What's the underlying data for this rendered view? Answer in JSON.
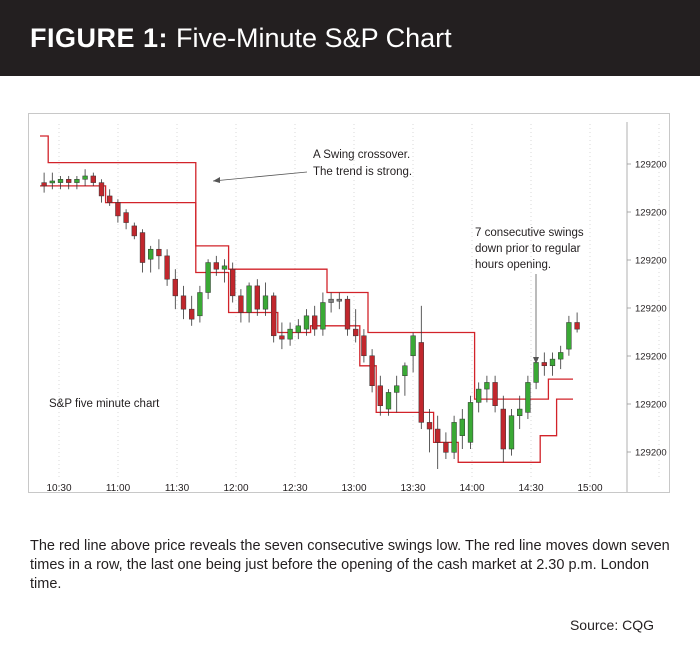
{
  "header": {
    "figure_label": "FIGURE 1:",
    "title": "Five-Minute S&P Chart"
  },
  "caption": "The red line above price reveals the seven consecutive swings low. The red line moves down seven times in a row, the last one being just before the opening of the cash market at 2.30 p.m. London time.",
  "source": "Source: CQG",
  "colors": {
    "header_bg": "#231f20",
    "swing_line": "#d2232a",
    "up_candle": "#3aa935",
    "down_candle": "#c1272d",
    "neutral_candle": "#808080"
  },
  "chart_data": {
    "type": "candlestick",
    "title": "",
    "xlabel": "",
    "ylabel": "",
    "x_ticks": [
      "10:30",
      "11:00",
      "11:30",
      "12:00",
      "12:30",
      "13:00",
      "13:30",
      "14:00",
      "14:30",
      "15:00"
    ],
    "y_ticks": [
      "129200",
      "129200",
      "129200",
      "129200",
      "129200",
      "129200",
      "129200"
    ],
    "y_axis_position": "right",
    "grid": "vertical dotted",
    "ylim": [
      0,
      100
    ],
    "labels": {
      "series": "S&P five minute chart",
      "crossover_line1": "A Swing crossover.",
      "crossover_line2": "The trend is strong.",
      "swings_line1": "7 consecutive swings",
      "swings_line2": "down prior to regular",
      "swings_line3": "hours opening."
    },
    "candles": [
      {
        "o": 86,
        "h": 89,
        "l": 83,
        "c": 85,
        "dir": "down"
      },
      {
        "o": 86,
        "h": 89,
        "l": 84,
        "c": 86.5,
        "dir": "up"
      },
      {
        "o": 86,
        "h": 88,
        "l": 84,
        "c": 87,
        "dir": "up"
      },
      {
        "o": 87,
        "h": 88,
        "l": 84,
        "c": 86,
        "dir": "down"
      },
      {
        "o": 86,
        "h": 88,
        "l": 84,
        "c": 87,
        "dir": "up"
      },
      {
        "o": 87,
        "h": 90,
        "l": 85,
        "c": 88,
        "dir": "up"
      },
      {
        "o": 88,
        "h": 89,
        "l": 85,
        "c": 86,
        "dir": "down"
      },
      {
        "o": 86,
        "h": 87,
        "l": 80,
        "c": 82,
        "dir": "down"
      },
      {
        "o": 82,
        "h": 84,
        "l": 79,
        "c": 80,
        "dir": "down"
      },
      {
        "o": 80,
        "h": 81,
        "l": 74,
        "c": 76,
        "dir": "down"
      },
      {
        "o": 77,
        "h": 78,
        "l": 72,
        "c": 74,
        "dir": "down"
      },
      {
        "o": 73,
        "h": 74,
        "l": 69,
        "c": 70,
        "dir": "down"
      },
      {
        "o": 71,
        "h": 72,
        "l": 59,
        "c": 62,
        "dir": "down"
      },
      {
        "o": 63,
        "h": 67,
        "l": 59,
        "c": 66,
        "dir": "up"
      },
      {
        "o": 66,
        "h": 69,
        "l": 60,
        "c": 64,
        "dir": "down"
      },
      {
        "o": 64,
        "h": 66,
        "l": 55,
        "c": 57,
        "dir": "down"
      },
      {
        "o": 57,
        "h": 60,
        "l": 48,
        "c": 52,
        "dir": "down"
      },
      {
        "o": 52,
        "h": 55,
        "l": 45,
        "c": 48,
        "dir": "down"
      },
      {
        "o": 48,
        "h": 52,
        "l": 43,
        "c": 45,
        "dir": "down"
      },
      {
        "o": 46,
        "h": 55,
        "l": 44,
        "c": 53,
        "dir": "up"
      },
      {
        "o": 53,
        "h": 63,
        "l": 51,
        "c": 62,
        "dir": "up"
      },
      {
        "o": 62,
        "h": 64,
        "l": 58,
        "c": 60,
        "dir": "down"
      },
      {
        "o": 60,
        "h": 63,
        "l": 56,
        "c": 61,
        "dir": "up"
      },
      {
        "o": 60,
        "h": 62,
        "l": 50,
        "c": 52,
        "dir": "down"
      },
      {
        "o": 52,
        "h": 54,
        "l": 44,
        "c": 47,
        "dir": "down"
      },
      {
        "o": 47,
        "h": 56,
        "l": 44,
        "c": 55,
        "dir": "up"
      },
      {
        "o": 55,
        "h": 57,
        "l": 46,
        "c": 48,
        "dir": "down"
      },
      {
        "o": 48,
        "h": 56,
        "l": 46,
        "c": 52,
        "dir": "up"
      },
      {
        "o": 52,
        "h": 53,
        "l": 38,
        "c": 40,
        "dir": "down"
      },
      {
        "o": 40,
        "h": 44,
        "l": 36,
        "c": 39,
        "dir": "down"
      },
      {
        "o": 39,
        "h": 44,
        "l": 37,
        "c": 42,
        "dir": "up"
      },
      {
        "o": 41,
        "h": 45,
        "l": 39,
        "c": 43,
        "dir": "up"
      },
      {
        "o": 42,
        "h": 48,
        "l": 40,
        "c": 46,
        "dir": "up"
      },
      {
        "o": 46,
        "h": 49,
        "l": 40,
        "c": 42,
        "dir": "down"
      },
      {
        "o": 42,
        "h": 53,
        "l": 40,
        "c": 50,
        "dir": "up"
      },
      {
        "o": 50,
        "h": 53,
        "l": 47,
        "c": 51,
        "dir": "neutral"
      },
      {
        "o": 51,
        "h": 53,
        "l": 48,
        "c": 51,
        "dir": "neutral"
      },
      {
        "o": 51,
        "h": 52,
        "l": 40,
        "c": 42,
        "dir": "down"
      },
      {
        "o": 42,
        "h": 48,
        "l": 38,
        "c": 40,
        "dir": "down"
      },
      {
        "o": 40,
        "h": 42,
        "l": 32,
        "c": 34,
        "dir": "down"
      },
      {
        "o": 34,
        "h": 36,
        "l": 23,
        "c": 25,
        "dir": "down"
      },
      {
        "o": 25,
        "h": 28,
        "l": 16,
        "c": 19,
        "dir": "down"
      },
      {
        "o": 18,
        "h": 24,
        "l": 16,
        "c": 23,
        "dir": "up"
      },
      {
        "o": 23,
        "h": 28,
        "l": 17,
        "c": 25,
        "dir": "up"
      },
      {
        "o": 28,
        "h": 32,
        "l": 22,
        "c": 31,
        "dir": "up"
      },
      {
        "o": 34,
        "h": 41,
        "l": 29,
        "c": 40,
        "dir": "up"
      },
      {
        "o": 38,
        "h": 49,
        "l": 12,
        "c": 14,
        "dir": "down"
      },
      {
        "o": 14,
        "h": 18,
        "l": 5,
        "c": 12,
        "dir": "down"
      },
      {
        "o": 12,
        "h": 16,
        "l": 0,
        "c": 8,
        "dir": "down"
      },
      {
        "o": 8,
        "h": 11,
        "l": 3,
        "c": 5,
        "dir": "down"
      },
      {
        "o": 5,
        "h": 16,
        "l": 3,
        "c": 14,
        "dir": "up"
      },
      {
        "o": 10,
        "h": 18,
        "l": 6,
        "c": 15,
        "dir": "up"
      },
      {
        "o": 8,
        "h": 22,
        "l": 6,
        "c": 20,
        "dir": "up"
      },
      {
        "o": 20,
        "h": 26,
        "l": 17,
        "c": 24,
        "dir": "up"
      },
      {
        "o": 24,
        "h": 28,
        "l": 20,
        "c": 26,
        "dir": "up"
      },
      {
        "o": 26,
        "h": 28,
        "l": 17,
        "c": 19,
        "dir": "down"
      },
      {
        "o": 18,
        "h": 22,
        "l": 2,
        "c": 6,
        "dir": "down"
      },
      {
        "o": 6,
        "h": 18,
        "l": 4,
        "c": 16,
        "dir": "up"
      },
      {
        "o": 16,
        "h": 22,
        "l": 12,
        "c": 18,
        "dir": "up"
      },
      {
        "o": 17,
        "h": 28,
        "l": 15,
        "c": 26,
        "dir": "up"
      },
      {
        "o": 26,
        "h": 33,
        "l": 24,
        "c": 32,
        "dir": "up"
      },
      {
        "o": 32,
        "h": 35,
        "l": 28,
        "c": 31,
        "dir": "down"
      },
      {
        "o": 31,
        "h": 35,
        "l": 28,
        "c": 33,
        "dir": "up"
      },
      {
        "o": 33,
        "h": 37,
        "l": 30,
        "c": 35,
        "dir": "up"
      },
      {
        "o": 36,
        "h": 46,
        "l": 34,
        "c": 44,
        "dir": "up"
      },
      {
        "o": 44,
        "h": 47,
        "l": 41,
        "c": 42,
        "dir": "down"
      }
    ],
    "swing_high_line": [
      {
        "from": 0,
        "to": 1,
        "y": 100
      },
      {
        "from": 1,
        "to": 19,
        "y": 92
      },
      {
        "from": 19,
        "to": 23,
        "y": 67
      },
      {
        "from": 23,
        "to": 35,
        "y": 60
      },
      {
        "from": 35,
        "to": 40,
        "y": 53
      },
      {
        "from": 40,
        "to": 53,
        "y": 41
      },
      {
        "from": 53,
        "to": 62,
        "y": 21
      },
      {
        "from": 62,
        "to": 65,
        "y": 27
      }
    ],
    "swing_low_line": [
      {
        "from": 0,
        "to": 8,
        "y": 85
      },
      {
        "from": 8,
        "to": 19,
        "y": 80
      },
      {
        "from": 19,
        "to": 23,
        "y": 59
      },
      {
        "from": 23,
        "to": 29,
        "y": 47
      },
      {
        "from": 29,
        "to": 33,
        "y": 41
      },
      {
        "from": 33,
        "to": 39,
        "y": 43
      },
      {
        "from": 39,
        "to": 41,
        "y": 31
      },
      {
        "from": 41,
        "to": 48,
        "y": 17
      },
      {
        "from": 48,
        "to": 51,
        "y": 8
      },
      {
        "from": 51,
        "to": 61,
        "y": 2
      },
      {
        "from": 61,
        "to": 63,
        "y": 10
      },
      {
        "from": 63,
        "to": 65,
        "y": 21
      }
    ]
  }
}
